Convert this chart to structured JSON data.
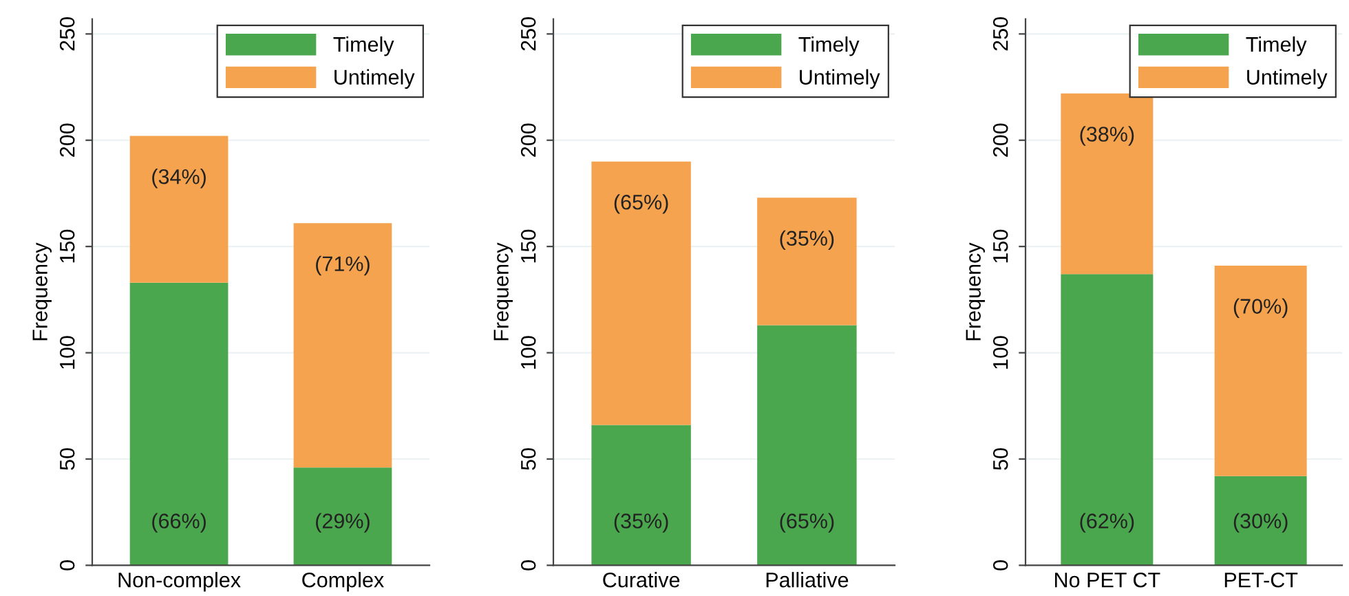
{
  "chart_data": [
    {
      "type": "bar",
      "stacked": true,
      "categories": [
        "Non-complex",
        "Complex"
      ],
      "ylabel": "Frequency",
      "ylim": [
        0,
        257
      ],
      "yticks": [
        0,
        50,
        100,
        150,
        200,
        250
      ],
      "grid": "y",
      "legend": "top right",
      "series": [
        {
          "name": "Timely",
          "color": "#4ba74d",
          "values": [
            133,
            46
          ]
        },
        {
          "name": "Untimely",
          "color": "#f5a34f",
          "values": [
            69,
            115
          ]
        }
      ],
      "annotations": [
        "(66%)",
        "(29%)",
        "(34%)",
        "(71%)"
      ]
    },
    {
      "type": "bar",
      "stacked": true,
      "categories": [
        "Curative",
        "Palliative"
      ],
      "ylabel": "Frequency",
      "ylim": [
        0,
        257
      ],
      "yticks": [
        0,
        50,
        100,
        150,
        200,
        250
      ],
      "grid": "y",
      "legend": "top right",
      "series": [
        {
          "name": "Timely",
          "color": "#4ba74d",
          "values": [
            66,
            113
          ]
        },
        {
          "name": "Untimely",
          "color": "#f5a34f",
          "values": [
            124,
            60
          ]
        }
      ],
      "annotations": [
        "(35%)",
        "(65%)",
        "(65%)",
        "(35%)"
      ]
    },
    {
      "type": "bar",
      "stacked": true,
      "categories": [
        "No PET CT",
        "PET-CT"
      ],
      "ylabel": "Frequency",
      "ylim": [
        0,
        257
      ],
      "yticks": [
        0,
        50,
        100,
        150,
        200,
        250
      ],
      "grid": "y",
      "legend": "top right",
      "series": [
        {
          "name": "Timely",
          "color": "#4ba74d",
          "values": [
            137,
            42
          ]
        },
        {
          "name": "Untimely",
          "color": "#f5a34f",
          "values": [
            85,
            99
          ]
        }
      ],
      "annotations": [
        "(62%)",
        "(30%)",
        "(38%)",
        "(70%)"
      ]
    }
  ]
}
